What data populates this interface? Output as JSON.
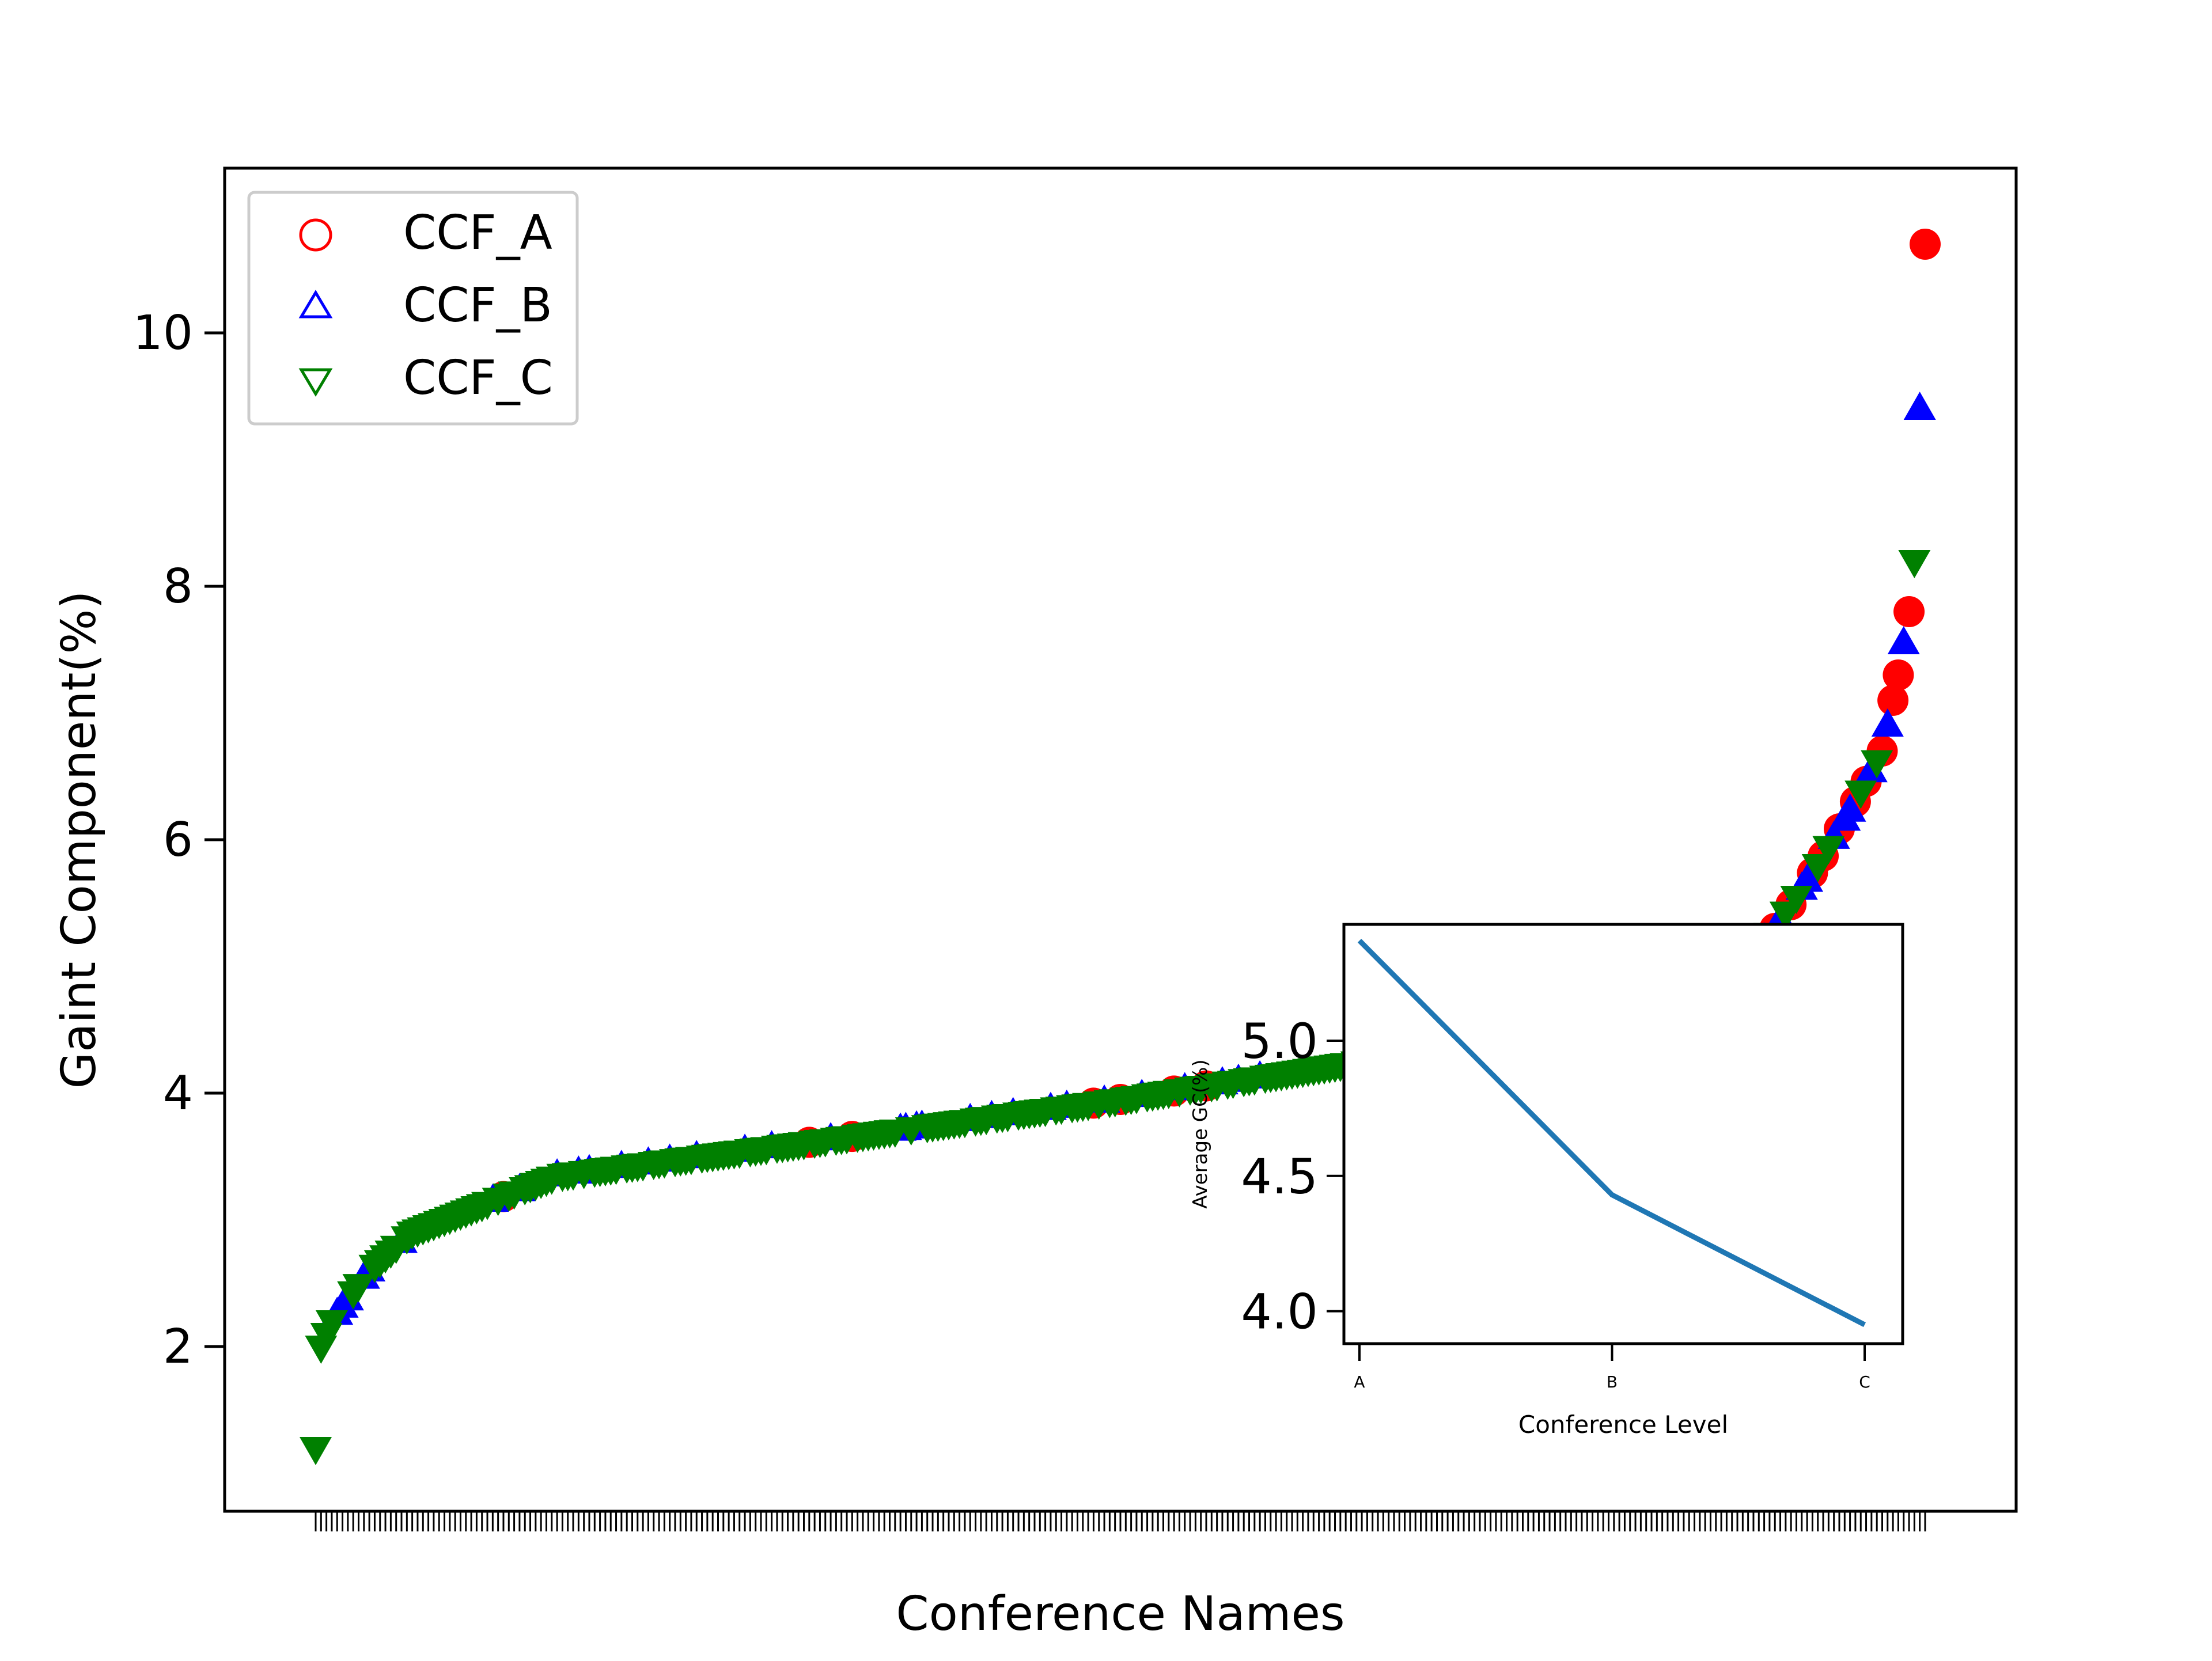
{
  "chart_data": [
    {
      "type": "scatter",
      "xlabel": "Conference Names",
      "ylabel": "Gaint Component(%)",
      "ylim": [
        0.7,
        11.3
      ],
      "yticks": [
        2,
        4,
        6,
        8,
        10
      ],
      "n_categories": 300,
      "legend": {
        "placement": "top-left",
        "entries": [
          "CCF_A",
          "CCF_B",
          "CCF_C"
        ]
      },
      "colors": {
        "CCF_A": "#ff0000",
        "CCF_B": "#0000ff",
        "CCF_C": "#008000"
      },
      "grid": false,
      "curve_knots": [
        [
          0,
          1.2
        ],
        [
          1,
          2.0
        ],
        [
          3,
          2.2
        ],
        [
          10,
          2.6
        ],
        [
          18,
          2.9
        ],
        [
          30,
          3.1
        ],
        [
          45,
          3.35
        ],
        [
          90,
          3.6
        ],
        [
          150,
          3.95
        ],
        [
          210,
          4.35
        ],
        [
          240,
          4.5
        ],
        [
          255,
          4.7
        ],
        [
          265,
          5.0
        ],
        [
          272,
          5.3
        ],
        [
          280,
          5.8
        ],
        [
          287,
          6.3
        ],
        [
          292,
          6.7
        ],
        [
          295,
          7.3
        ],
        [
          297,
          7.8
        ],
        [
          298,
          8.2
        ],
        [
          299,
          9.4
        ],
        [
          300,
          10.7
        ]
      ],
      "series": [
        {
          "name": "CCF_A",
          "marker": "circle",
          "indices": [
            35,
            92,
            100,
            145,
            150,
            160,
            166,
            200,
            240,
            249,
            255,
            262,
            265,
            268,
            272,
            275,
            279,
            281,
            284,
            287,
            289,
            292,
            294,
            295,
            297,
            300
          ]
        },
        {
          "name": "CCF_B",
          "marker": "triangle-up",
          "indices": [
            4,
            5,
            6,
            9,
            10,
            16,
            33,
            38,
            45,
            49,
            51,
            57,
            62,
            66,
            71,
            80,
            85,
            96,
            109,
            110,
            112,
            113,
            122,
            126,
            130,
            137,
            140,
            147,
            154,
            162,
            169,
            172,
            176,
            193,
            198,
            205,
            210,
            213,
            217,
            220,
            225,
            230,
            234,
            238,
            244,
            248,
            252,
            257,
            260,
            263,
            270,
            273,
            277,
            278,
            283,
            285,
            286,
            290,
            293,
            296,
            299
          ]
        },
        {
          "name": "CCF_C",
          "marker": "triangle-down",
          "indices": [
            0,
            1,
            2,
            3,
            7,
            8,
            11,
            12,
            13,
            14,
            15,
            17,
            18,
            19,
            20,
            21,
            22,
            23,
            24,
            25,
            26,
            27,
            28,
            29,
            30,
            31,
            32,
            34,
            36,
            37,
            39,
            40,
            41,
            42,
            43,
            44,
            46,
            47,
            48,
            50,
            52,
            53,
            54,
            55,
            56,
            58,
            59,
            60,
            61,
            63,
            64,
            65,
            67,
            68,
            69,
            70,
            72,
            73,
            74,
            75,
            76,
            77,
            78,
            79,
            81,
            82,
            83,
            84,
            86,
            87,
            88,
            89,
            90,
            91,
            93,
            94,
            95,
            97,
            98,
            99,
            101,
            102,
            103,
            104,
            105,
            106,
            107,
            108,
            111,
            114,
            115,
            116,
            117,
            118,
            119,
            120,
            121,
            123,
            124,
            125,
            127,
            128,
            129,
            131,
            132,
            133,
            134,
            135,
            136,
            138,
            139,
            141,
            142,
            143,
            144,
            146,
            148,
            149,
            151,
            152,
            153,
            155,
            156,
            157,
            158,
            159,
            161,
            163,
            164,
            165,
            167,
            168,
            170,
            171,
            173,
            174,
            175,
            177,
            178,
            179,
            180,
            181,
            182,
            183,
            184,
            185,
            186,
            187,
            188,
            189,
            190,
            191,
            192,
            194,
            195,
            196,
            197,
            199,
            201,
            202,
            203,
            204,
            206,
            207,
            208,
            209,
            211,
            212,
            214,
            215,
            216,
            218,
            219,
            221,
            222,
            223,
            224,
            226,
            227,
            228,
            229,
            231,
            232,
            233,
            235,
            236,
            237,
            239,
            241,
            242,
            243,
            245,
            246,
            247,
            250,
            251,
            253,
            254,
            256,
            258,
            259,
            261,
            264,
            266,
            267,
            269,
            271,
            274,
            276,
            280,
            282,
            288,
            291,
            298
          ]
        }
      ]
    },
    {
      "type": "line",
      "xlabel": "Conference Level",
      "ylabel": "Average GC(%)",
      "categories": [
        "A",
        "B",
        "C"
      ],
      "values": [
        5.37,
        4.43,
        3.95
      ],
      "ylim": [
        3.88,
        5.43
      ],
      "yticks": [
        4.0,
        4.5,
        5.0
      ],
      "ytick_labels": [
        "4.0",
        "4.5",
        "5.0"
      ],
      "color": "#1f77b4",
      "grid": false
    }
  ]
}
